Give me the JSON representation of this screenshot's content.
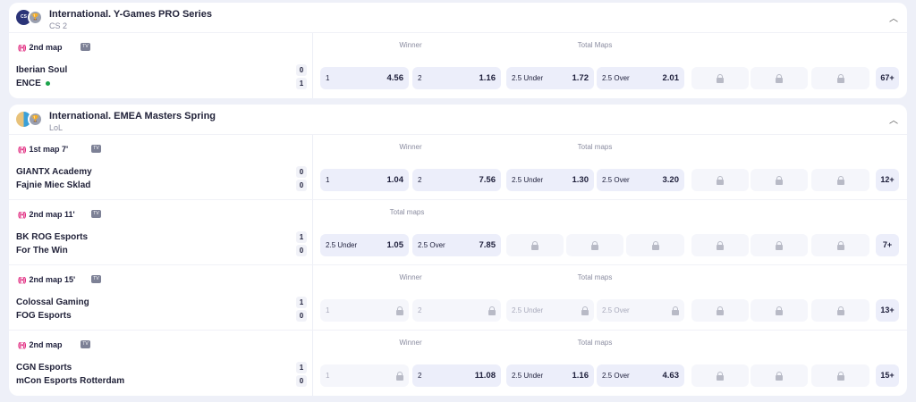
{
  "colors": {
    "live": "#e0267d",
    "cell_bg": "#eceefa",
    "locked_bg": "#f5f6fb",
    "serve_dot": "#1aa34a"
  },
  "leagues": [
    {
      "title": "International. Y-Games PRO Series",
      "sport": "CS 2",
      "logo": "CS",
      "matches": [
        {
          "status": "2nd map",
          "teams": [
            {
              "name": "Iberian Soul",
              "score": "0",
              "serving": false
            },
            {
              "name": "ENCE",
              "score": "1",
              "serving": true
            }
          ],
          "markets": [
            "Winner",
            "Total Maps"
          ],
          "cells": [
            {
              "label": "1",
              "odd": "4.56"
            },
            {
              "label": "2",
              "odd": "1.16"
            },
            {
              "label": "2.5 Under",
              "odd": "1.72"
            },
            {
              "label": "2.5 Over",
              "odd": "2.01"
            },
            {
              "locked": true
            },
            {
              "locked": true
            },
            {
              "locked": true
            }
          ],
          "more": "67+"
        }
      ]
    },
    {
      "title": "International. EMEA Masters Spring",
      "sport": "LoL",
      "logo": "",
      "matches": [
        {
          "status": "1st map 7'",
          "teams": [
            {
              "name": "GIANTX Academy",
              "score": "0"
            },
            {
              "name": "Fajnie Miec Sklad",
              "score": "0"
            }
          ],
          "markets": [
            "Winner",
            "Total maps"
          ],
          "cells": [
            {
              "label": "1",
              "odd": "1.04"
            },
            {
              "label": "2",
              "odd": "7.56"
            },
            {
              "label": "2.5 Under",
              "odd": "1.30"
            },
            {
              "label": "2.5 Over",
              "odd": "3.20"
            },
            {
              "locked": true
            },
            {
              "locked": true
            },
            {
              "locked": true
            }
          ],
          "more": "12+"
        },
        {
          "status": "2nd map 11'",
          "teams": [
            {
              "name": "BK ROG Esports",
              "score": "1"
            },
            {
              "name": "For The Win",
              "score": "0"
            }
          ],
          "markets": [
            "Total maps"
          ],
          "cells": [
            {
              "label": "2.5 Under",
              "odd": "1.05"
            },
            {
              "label": "2.5 Over",
              "odd": "7.85"
            },
            {
              "locked": true
            },
            {
              "locked": true
            },
            {
              "locked": true
            },
            {
              "locked": true
            },
            {
              "locked": true
            },
            {
              "locked": true
            }
          ],
          "more": "7+"
        },
        {
          "status": "2nd map 15'",
          "teams": [
            {
              "name": "Colossal Gaming",
              "score": "1"
            },
            {
              "name": "FOG Esports",
              "score": "0"
            }
          ],
          "markets": [
            "Winner",
            "Total maps"
          ],
          "cells": [
            {
              "label": "1",
              "locked": true
            },
            {
              "label": "2",
              "locked": true
            },
            {
              "label": "2.5 Under",
              "locked": true
            },
            {
              "label": "2.5 Over",
              "locked": true
            },
            {
              "locked": true
            },
            {
              "locked": true
            },
            {
              "locked": true
            }
          ],
          "more": "13+"
        },
        {
          "status": "2nd map",
          "teams": [
            {
              "name": "CGN Esports",
              "score": "1"
            },
            {
              "name": "mCon Esports Rotterdam",
              "score": "0"
            }
          ],
          "markets": [
            "Winner",
            "Total maps"
          ],
          "cells": [
            {
              "label": "1",
              "locked": true
            },
            {
              "label": "2",
              "odd": "11.08"
            },
            {
              "label": "2.5 Under",
              "odd": "1.16"
            },
            {
              "label": "2.5 Over",
              "odd": "4.63"
            },
            {
              "locked": true
            },
            {
              "locked": true
            },
            {
              "locked": true
            }
          ],
          "more": "15+"
        }
      ]
    }
  ]
}
